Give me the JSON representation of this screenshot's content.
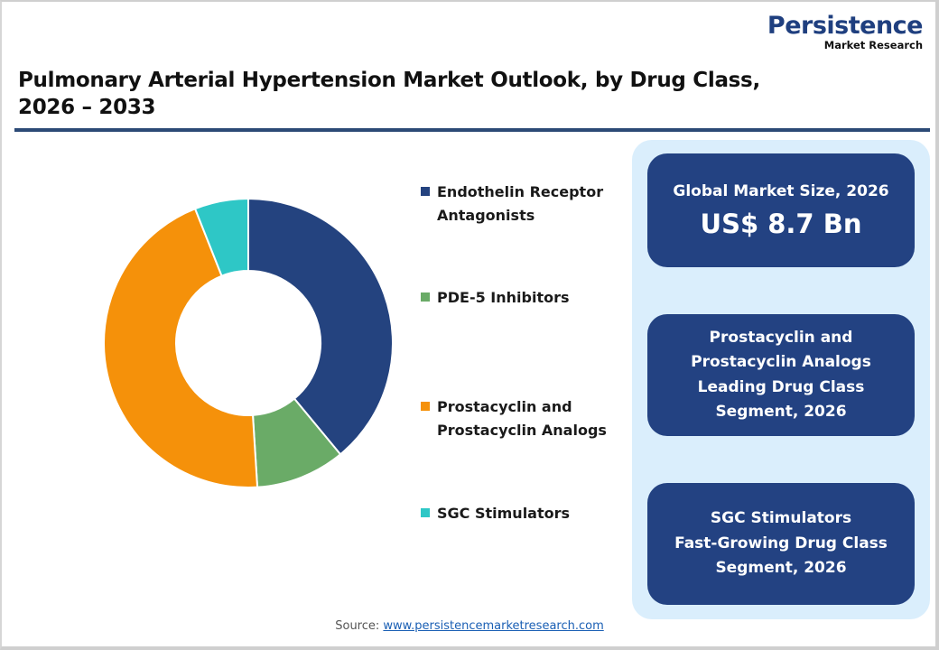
{
  "brand": {
    "name": "Persistence",
    "tagline": "Market Research"
  },
  "title": {
    "line1": "Pulmonary Arterial Hypertension Market Outlook, by Drug Class,",
    "line2": "2026 – 2033"
  },
  "legend": [
    {
      "label_line1": "Endothelin Receptor",
      "label_line2": "Antagonists",
      "color": "#24437f"
    },
    {
      "label_line1": "PDE-5 Inhibitors",
      "label_line2": "",
      "color": "#6aab67"
    },
    {
      "label_line1": "Prostacyclin and",
      "label_line2": "Prostacyclin Analogs",
      "color": "#f5910a"
    },
    {
      "label_line1": "SGC Stimulators",
      "label_line2": "",
      "color": "#2ec7c6"
    }
  ],
  "cards": [
    {
      "heading": "Global Market Size, 2026",
      "value": "US$ 8.7 Bn"
    },
    {
      "lines": [
        "Prostacyclin and",
        "Prostacyclin Analogs",
        "Leading Drug Class",
        "Segment, 2026"
      ]
    },
    {
      "lines": [
        "SGC Stimulators",
        "Fast-Growing Drug Class",
        "Segment, 2026"
      ]
    }
  ],
  "source": {
    "label": "Source:",
    "link_text": "www.persistencemarketresearch.com"
  },
  "colors": {
    "brand_blue": "#1f3f7f",
    "divider": "#2c4a76",
    "panel_bg": "#daeefc",
    "card_bg": "#234282"
  },
  "chart_data": {
    "type": "pie",
    "subtype": "donut",
    "title": "Pulmonary Arterial Hypertension Market Outlook, by Drug Class, 2026 – 2033",
    "categories": [
      "Endothelin Receptor Antagonists",
      "PDE-5 Inhibitors",
      "Prostacyclin and Prostacyclin Analogs",
      "SGC Stimulators"
    ],
    "values": [
      39,
      10,
      45,
      6
    ],
    "unit": "% share (estimated from slice angles)",
    "colors": [
      "#24437f",
      "#6aab67",
      "#f5910a",
      "#2ec7c6"
    ],
    "start_angle": "12 o'clock, clockwise",
    "legend_position": "right",
    "data_labels": false
  }
}
